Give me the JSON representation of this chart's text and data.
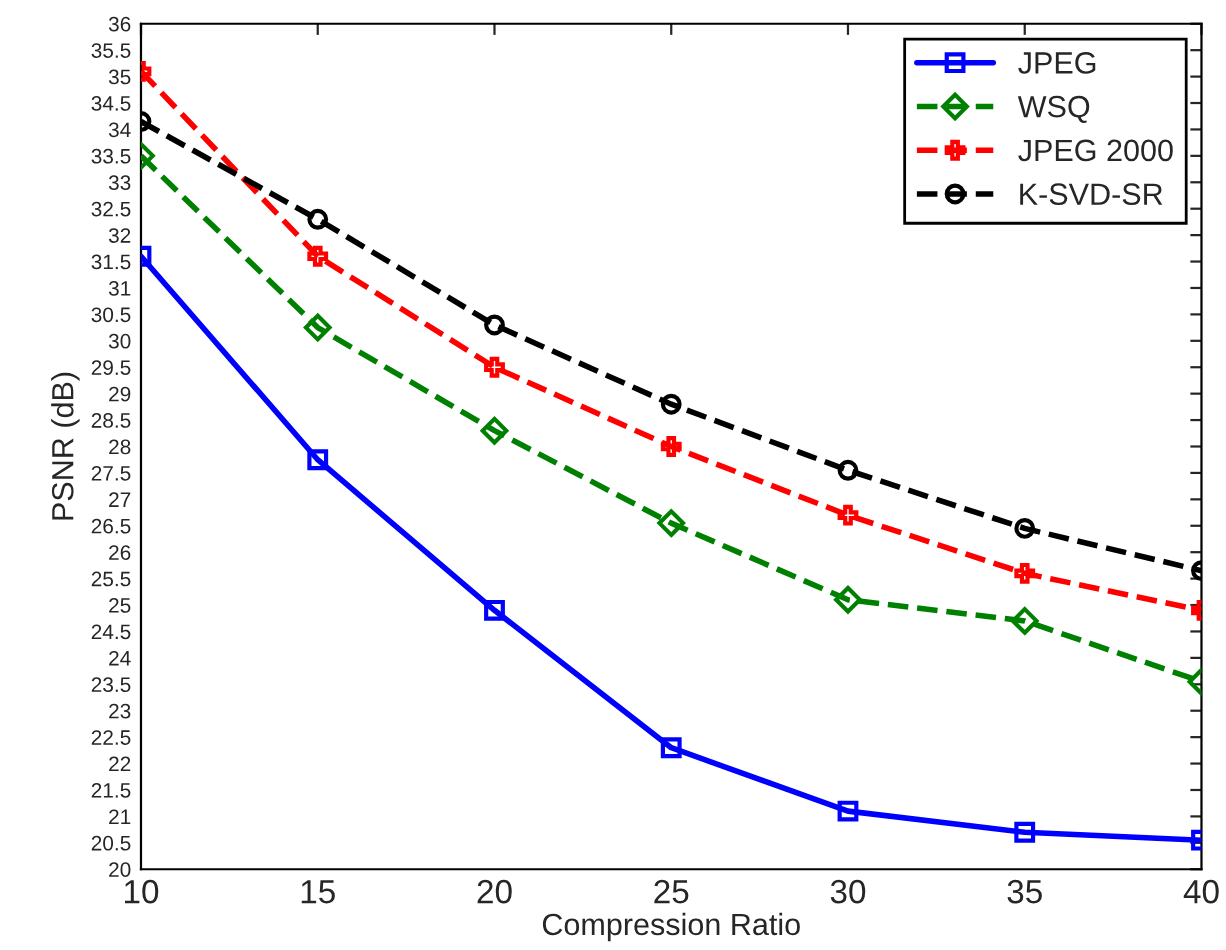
{
  "chart_data": {
    "type": "line",
    "xlabel": "Compression Ratio",
    "ylabel": "PSNR (dB)",
    "x": [
      10,
      15,
      20,
      25,
      30,
      35,
      40
    ],
    "series": [
      {
        "name": "JPEG",
        "color": "#0000ff",
        "marker": "square",
        "line_style": "solid",
        "values": [
          31.6,
          27.75,
          24.9,
          22.3,
          21.1,
          20.7,
          20.55
        ]
      },
      {
        "name": "WSQ",
        "color": "#008000",
        "marker": "diamond",
        "line_style": "dashed",
        "values": [
          33.5,
          30.25,
          28.3,
          26.55,
          25.1,
          24.7,
          23.55
        ]
      },
      {
        "name": "JPEG 2000",
        "color": "#ff0000",
        "marker": "cross",
        "line_style": "dashed",
        "values": [
          35.1,
          31.6,
          29.5,
          28.0,
          26.7,
          25.6,
          24.9
        ]
      },
      {
        "name": "K-SVD-SR",
        "color": "#000000",
        "marker": "circle",
        "line_style": "dashed",
        "values": [
          34.15,
          32.3,
          30.3,
          28.8,
          27.55,
          26.45,
          25.65
        ]
      }
    ],
    "xlim": [
      10,
      40
    ],
    "xticks": [
      10,
      15,
      20,
      25,
      30,
      35,
      40
    ],
    "ylim": [
      20,
      36
    ],
    "yticks": [
      20,
      20.5,
      21,
      21.5,
      22,
      22.5,
      23,
      23.5,
      24,
      24.5,
      25,
      25.5,
      26,
      26.5,
      27,
      27.5,
      28,
      28.5,
      29,
      29.5,
      30,
      30.5,
      31,
      31.5,
      32,
      32.5,
      33,
      33.5,
      34,
      34.5,
      35,
      35.5,
      36
    ],
    "grid": false,
    "legend": "top right"
  }
}
